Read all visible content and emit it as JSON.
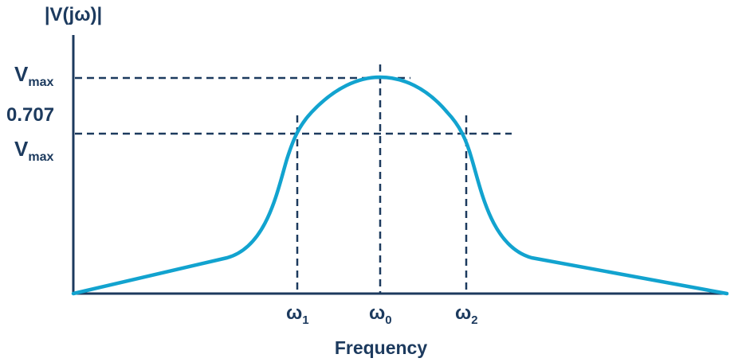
{
  "y_axis": {
    "label": "|V(jω)|"
  },
  "x_axis": {
    "label": "Frequency"
  },
  "levels": {
    "peak": {
      "main": "V",
      "sub": "max"
    },
    "half_power": {
      "coefficient": "0.707",
      "main": "V",
      "sub": "max"
    }
  },
  "frequencies": {
    "lower": {
      "main": "ω",
      "sub": "1"
    },
    "center": {
      "main": "ω",
      "sub": "0"
    },
    "upper": {
      "main": "ω",
      "sub": "2"
    }
  },
  "colors": {
    "curve": "#12a3cf",
    "ink": "#1c3a5e"
  }
}
